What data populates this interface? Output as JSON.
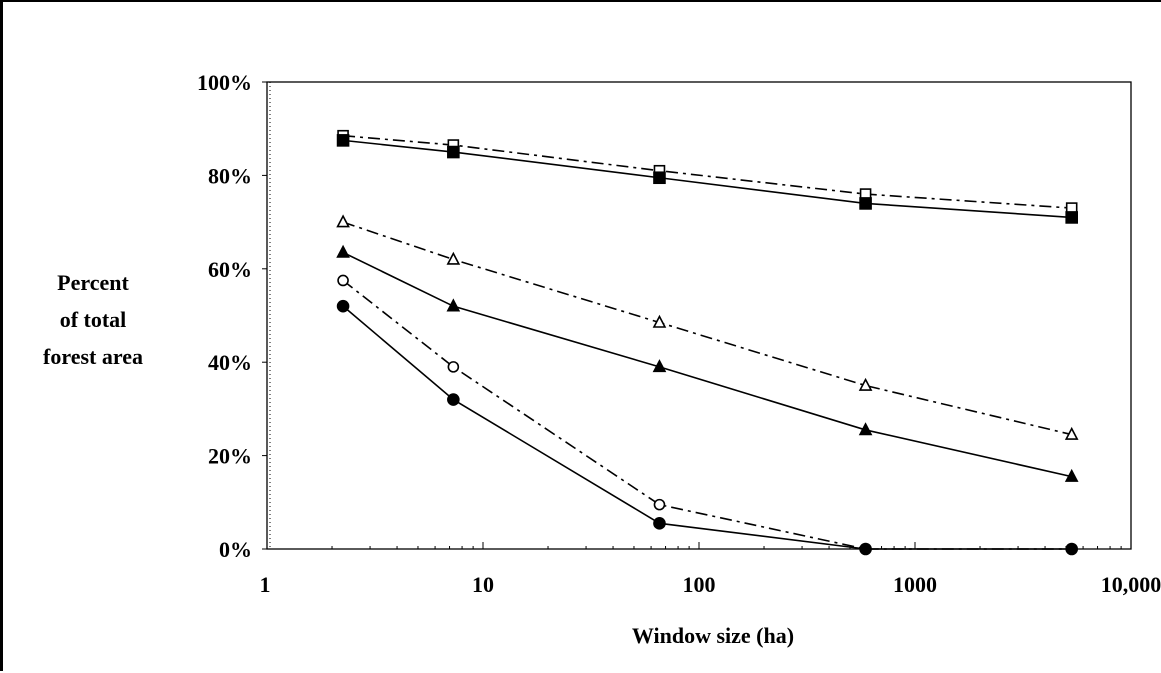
{
  "chart_data": {
    "type": "line",
    "title": "",
    "xlabel": "Window size (ha)",
    "ylabel": [
      "Percent",
      "of total",
      "forest area"
    ],
    "x_scale": "log",
    "xlim": [
      1,
      10000
    ],
    "ylim": [
      0,
      100
    ],
    "x_ticks": [
      1,
      10,
      100,
      1000,
      10000
    ],
    "x_tick_labels": [
      "1",
      "10",
      "100",
      "1000",
      "10,000"
    ],
    "y_ticks": [
      0,
      20,
      40,
      60,
      80,
      100
    ],
    "y_tick_labels": [
      "0%",
      "20%",
      "40%",
      "60%",
      "80%",
      "100%"
    ],
    "x": [
      2.25,
      7.29,
      65.61,
      590.49,
      5314.41
    ],
    "series": [
      {
        "marker": "square-open",
        "line": "dash-dot",
        "values": [
          88.5,
          86.5,
          81,
          76,
          73
        ]
      },
      {
        "marker": "square-filled",
        "line": "solid",
        "values": [
          87.5,
          85,
          79.5,
          74,
          71
        ]
      },
      {
        "marker": "triangle-open",
        "line": "dash-dot",
        "values": [
          70,
          62,
          48.5,
          35,
          24.5
        ]
      },
      {
        "marker": "triangle-filled",
        "line": "solid",
        "values": [
          63.5,
          52,
          39,
          25.5,
          15.5
        ]
      },
      {
        "marker": "circle-open",
        "line": "dash-dot",
        "values": [
          57.5,
          39,
          9.5,
          0,
          0
        ]
      },
      {
        "marker": "circle-filled",
        "line": "solid",
        "values": [
          52,
          32,
          5.5,
          0,
          0
        ]
      }
    ],
    "grid": false,
    "colors": {
      "line": "#000000",
      "background": "#ffffff"
    }
  }
}
